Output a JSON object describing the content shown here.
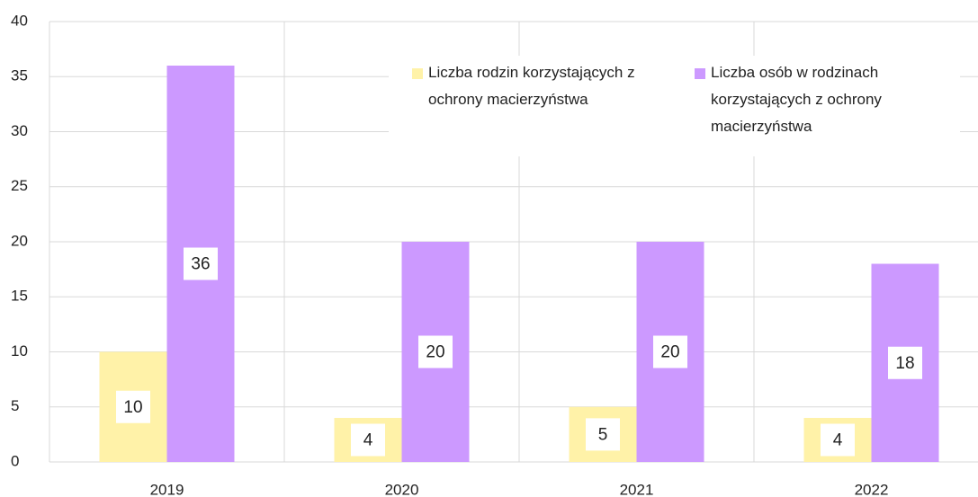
{
  "chart_data": {
    "type": "bar",
    "categories": [
      "2019",
      "2020",
      "2021",
      "2022"
    ],
    "series": [
      {
        "name": "Liczba rodzin korzystających z ochrony macierzyństwa",
        "color": "#fff2a8",
        "values": [
          10,
          4,
          5,
          4
        ]
      },
      {
        "name": "Liczba osób w rodzinach korzystających z ochrony macierzyństwa",
        "color": "#cc99ff",
        "values": [
          36,
          20,
          20,
          18
        ]
      }
    ],
    "ylim": [
      0,
      40
    ],
    "yticks": [
      0,
      5,
      10,
      15,
      20,
      25,
      30,
      35,
      40
    ],
    "grid": true,
    "legend": "top-right"
  }
}
